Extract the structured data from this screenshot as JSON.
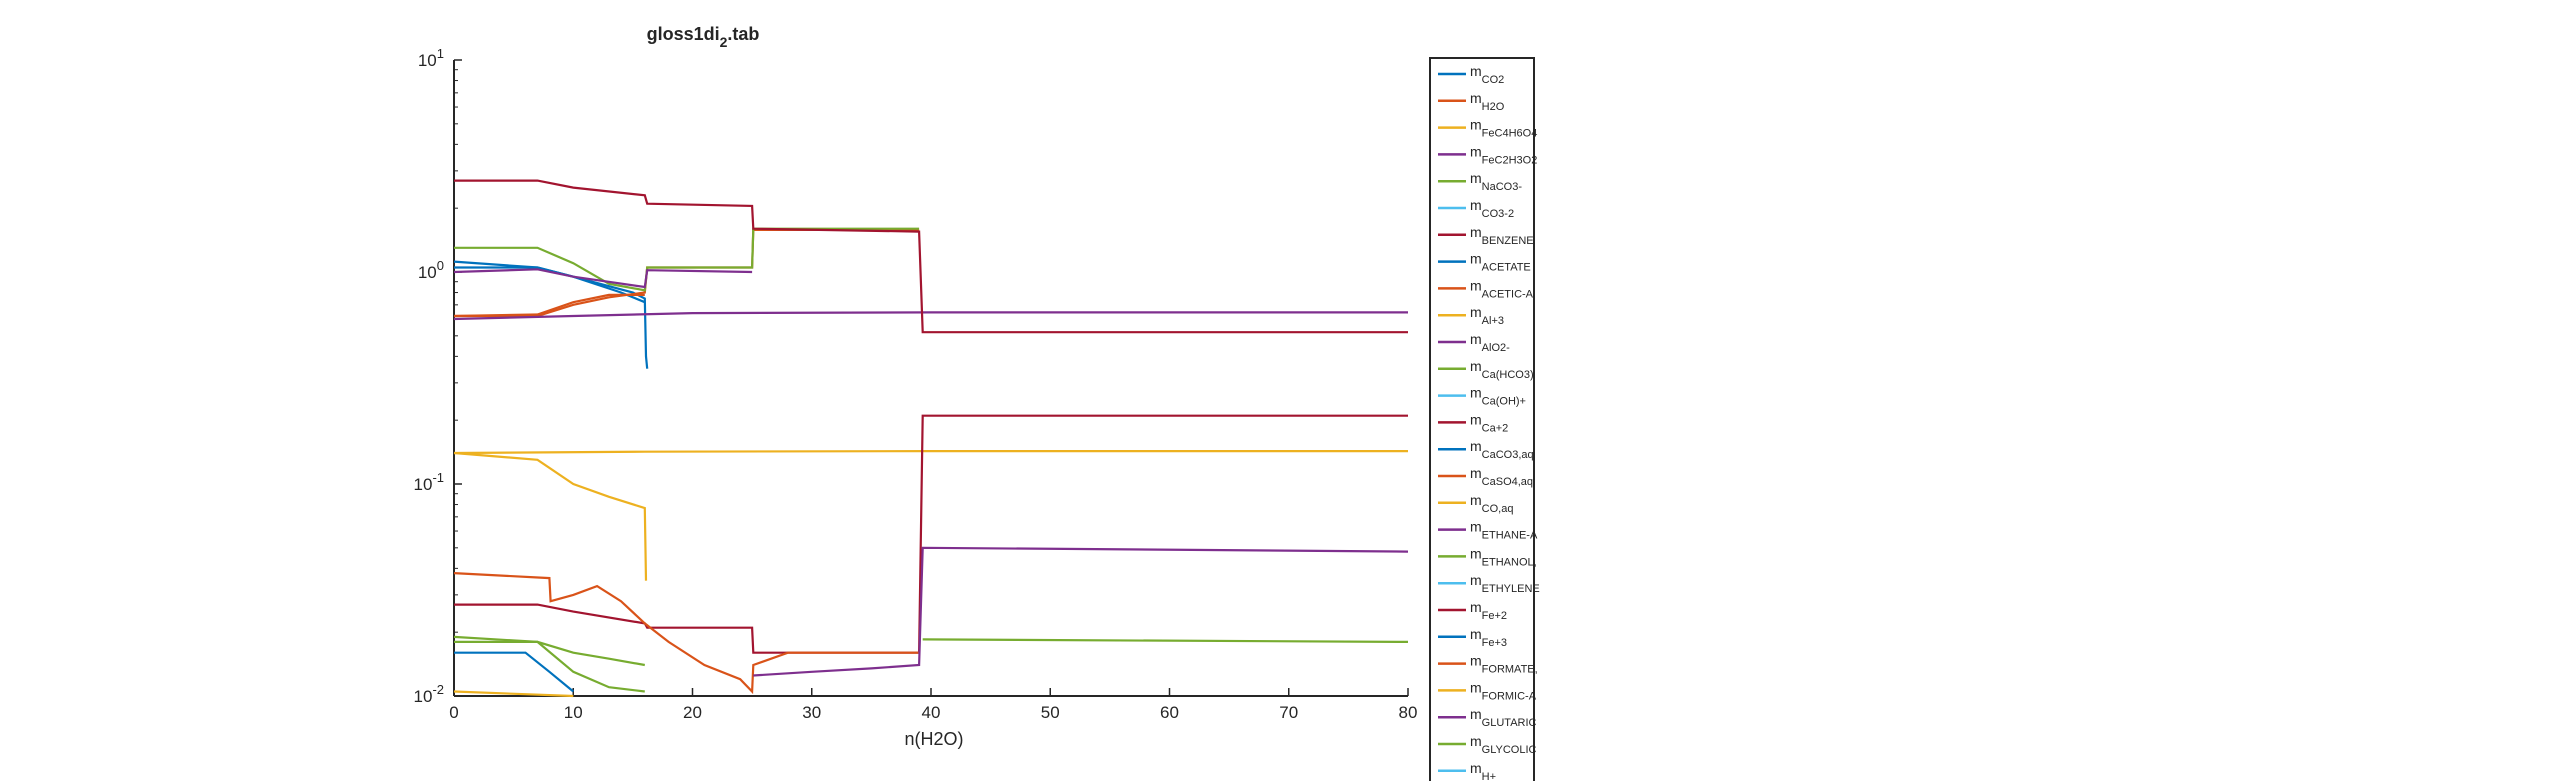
{
  "window": {
    "title_main": "gloss1di",
    "title_sub": "2",
    "title_suffix": ".tab"
  },
  "chart_data": {
    "type": "line",
    "title": "gloss1di_2.tab",
    "xlabel": "n(H2O)",
    "ylabel": "",
    "xscale": "linear",
    "yscale": "log",
    "xlim": [
      0,
      80
    ],
    "ylim": [
      0.01,
      10
    ],
    "x_ticks": [
      0,
      10,
      20,
      30,
      40,
      50,
      60,
      70,
      80
    ],
    "y_ticks": [
      {
        "value": 0.01,
        "base": "10",
        "exp": "-2"
      },
      {
        "value": 0.1,
        "base": "10",
        "exp": "-1"
      },
      {
        "value": 1,
        "base": "10",
        "exp": "0"
      },
      {
        "value": 10,
        "base": "10",
        "exp": "1"
      }
    ],
    "grid": false,
    "legend_position": "right (outside, clipped at bottom)",
    "colors": {
      "blue": "#0072BD",
      "orange": "#D95319",
      "yellow": "#EDB120",
      "purple": "#7E2F8E",
      "green": "#77AC30",
      "cyan": "#4DBEEE",
      "darkred": "#A2142F"
    },
    "series": [
      {
        "name": "CO2",
        "color": "#0072BD",
        "points": [
          [
            0,
            1.12
          ],
          [
            7,
            1.05
          ],
          [
            10,
            0.95
          ],
          [
            15,
            0.8
          ],
          [
            16,
            0.75
          ],
          [
            16.1,
            0.4
          ],
          [
            16.2,
            0.35
          ],
          [
            16.3,
            null
          ]
        ]
      },
      {
        "name": "H2O",
        "color": "#D95319",
        "points": [
          [
            0,
            0.62
          ],
          [
            7,
            0.62
          ],
          [
            10,
            0.7
          ],
          [
            13,
            0.76
          ],
          [
            16,
            0.8
          ],
          [
            16.2,
            1.05
          ],
          [
            25,
            1.05
          ],
          [
            25.1,
            1.58
          ],
          [
            39,
            1.58
          ],
          [
            39.1,
            null
          ]
        ]
      },
      {
        "name": "FeC4H6O4",
        "color": "#EDB120",
        "points": [
          [
            0,
            0.0105
          ],
          [
            6,
            0.0102
          ],
          [
            10,
            0.0099
          ],
          [
            10.1,
            null
          ]
        ]
      },
      {
        "name": "FeC2H3O2",
        "color": "#7E2F8E",
        "points": [
          [
            0,
            0.6
          ],
          [
            10,
            0.62
          ],
          [
            20,
            0.64
          ],
          [
            40,
            0.645
          ],
          [
            80,
            0.645
          ]
        ]
      },
      {
        "name": "NaCO3-",
        "color": "#77AC30",
        "points": [
          [
            0,
            1.3
          ],
          [
            7,
            1.3
          ],
          [
            10,
            1.1
          ],
          [
            13,
            0.88
          ],
          [
            16,
            0.82
          ],
          [
            16.2,
            1.05
          ],
          [
            25,
            1.05
          ],
          [
            25.1,
            1.6
          ],
          [
            39,
            1.6
          ],
          [
            39.1,
            null
          ]
        ]
      },
      {
        "name": "CO3-2",
        "color": "#4DBEEE",
        "points": []
      },
      {
        "name": "BENZENE",
        "color": "#A2142F",
        "points": [
          [
            0,
            2.7
          ],
          [
            7,
            2.7
          ],
          [
            10,
            2.5
          ],
          [
            16,
            2.3
          ],
          [
            16.2,
            2.1
          ],
          [
            25,
            2.05
          ],
          [
            25.1,
            1.6
          ],
          [
            39,
            1.55
          ],
          [
            39.3,
            0.52
          ],
          [
            80,
            0.52
          ]
        ]
      },
      {
        "name": "ACETATE",
        "color": "#0072BD",
        "points": [
          [
            0,
            1.05
          ],
          [
            7,
            1.05
          ],
          [
            10,
            0.95
          ],
          [
            14,
            0.8
          ],
          [
            16,
            0.72
          ],
          [
            16.1,
            null
          ]
        ]
      },
      {
        "name": "ACETIC-A",
        "color": "#D95319",
        "points": [
          [
            0,
            0.62
          ],
          [
            7,
            0.63
          ],
          [
            10,
            0.72
          ],
          [
            13,
            0.78
          ],
          [
            16,
            0.78
          ],
          [
            16.1,
            null
          ]
        ]
      },
      {
        "name": "Al+3",
        "color": "#EDB120",
        "points": [
          [
            0,
            0.14
          ],
          [
            16,
            0.142
          ],
          [
            40,
            0.143
          ],
          [
            80,
            0.143
          ]
        ]
      },
      {
        "name": "AlO2-",
        "color": "#7E2F8E",
        "points": [
          [
            0,
            1.0
          ],
          [
            7,
            1.03
          ],
          [
            10,
            0.95
          ],
          [
            16,
            0.85
          ],
          [
            16.2,
            1.02
          ],
          [
            25,
            1.0
          ],
          [
            25.1,
            null
          ]
        ]
      },
      {
        "name": "Ca(HCO3)",
        "color": "#77AC30",
        "points": [
          [
            0,
            0.018
          ],
          [
            7,
            0.018
          ],
          [
            10,
            0.013
          ],
          [
            13,
            0.011
          ],
          [
            16,
            0.0105
          ],
          [
            16.1,
            null
          ]
        ]
      },
      {
        "name": "Ca(OH)+",
        "color": "#4DBEEE",
        "points": []
      },
      {
        "name": "Ca+2",
        "color": "#A2142F",
        "points": [
          [
            0,
            0.027
          ],
          [
            7,
            0.027
          ],
          [
            10,
            0.025
          ],
          [
            16,
            0.022
          ],
          [
            16.2,
            0.021
          ],
          [
            25,
            0.021
          ],
          [
            25.1,
            0.016
          ],
          [
            39,
            0.016
          ],
          [
            39.3,
            0.21
          ],
          [
            80,
            0.21
          ]
        ]
      },
      {
        "name": "CaCO3,aq",
        "color": "#0072BD",
        "points": [
          [
            0,
            0.016
          ],
          [
            6,
            0.016
          ],
          [
            8,
            0.013
          ],
          [
            10,
            0.0105
          ],
          [
            10.2,
            null
          ]
        ]
      },
      {
        "name": "CaSO4,aq",
        "color": "#D95319",
        "points": [
          [
            0,
            0.038
          ],
          [
            8,
            0.036
          ],
          [
            8.1,
            0.028
          ],
          [
            10,
            0.03
          ],
          [
            12,
            0.033
          ],
          [
            14,
            0.028
          ],
          [
            16,
            0.022
          ],
          [
            18,
            0.018
          ],
          [
            21,
            0.014
          ],
          [
            24,
            0.012
          ],
          [
            25,
            0.0105
          ],
          [
            25.1,
            0.014
          ],
          [
            28,
            0.016
          ],
          [
            32,
            0.016
          ],
          [
            36,
            0.016
          ],
          [
            39,
            0.016
          ],
          [
            39.1,
            null
          ]
        ]
      },
      {
        "name": "CO,aq",
        "color": "#EDB120",
        "points": [
          [
            0,
            0.14
          ],
          [
            7,
            0.13
          ],
          [
            10,
            0.1
          ],
          [
            13,
            0.087
          ],
          [
            16,
            0.077
          ],
          [
            16.1,
            0.035
          ],
          [
            16.2,
            null
          ]
        ]
      },
      {
        "name": "ETHANE-A",
        "color": "#7E2F8E",
        "points": [
          [
            25.1,
            0.0125
          ],
          [
            30,
            0.013
          ],
          [
            35,
            0.0135
          ],
          [
            39,
            0.014
          ],
          [
            39.3,
            0.05
          ],
          [
            80,
            0.048
          ]
        ]
      },
      {
        "name": "ETHANOL,",
        "color": "#77AC30",
        "points": [
          [
            0,
            0.019
          ],
          [
            7,
            0.018
          ],
          [
            10,
            0.016
          ],
          [
            13,
            0.015
          ],
          [
            16,
            0.014
          ],
          [
            16.1,
            null
          ],
          [
            39.3,
            0.0185
          ],
          [
            80,
            0.018
          ]
        ]
      },
      {
        "name": "ETHYLENE",
        "color": "#4DBEEE",
        "points": []
      },
      {
        "name": "Fe+2",
        "color": "#A2142F",
        "points": []
      },
      {
        "name": "Fe+3",
        "color": "#0072BD",
        "points": []
      },
      {
        "name": "FORMATE,",
        "color": "#D95319",
        "points": []
      },
      {
        "name": "FORMIC-A",
        "color": "#EDB120",
        "points": []
      },
      {
        "name": "GLUTARIC",
        "color": "#7E2F8E",
        "points": []
      },
      {
        "name": "GLYCOLIC",
        "color": "#77AC30",
        "points": []
      },
      {
        "name": "H+",
        "color": "#4DBEEE",
        "points": []
      }
    ]
  }
}
